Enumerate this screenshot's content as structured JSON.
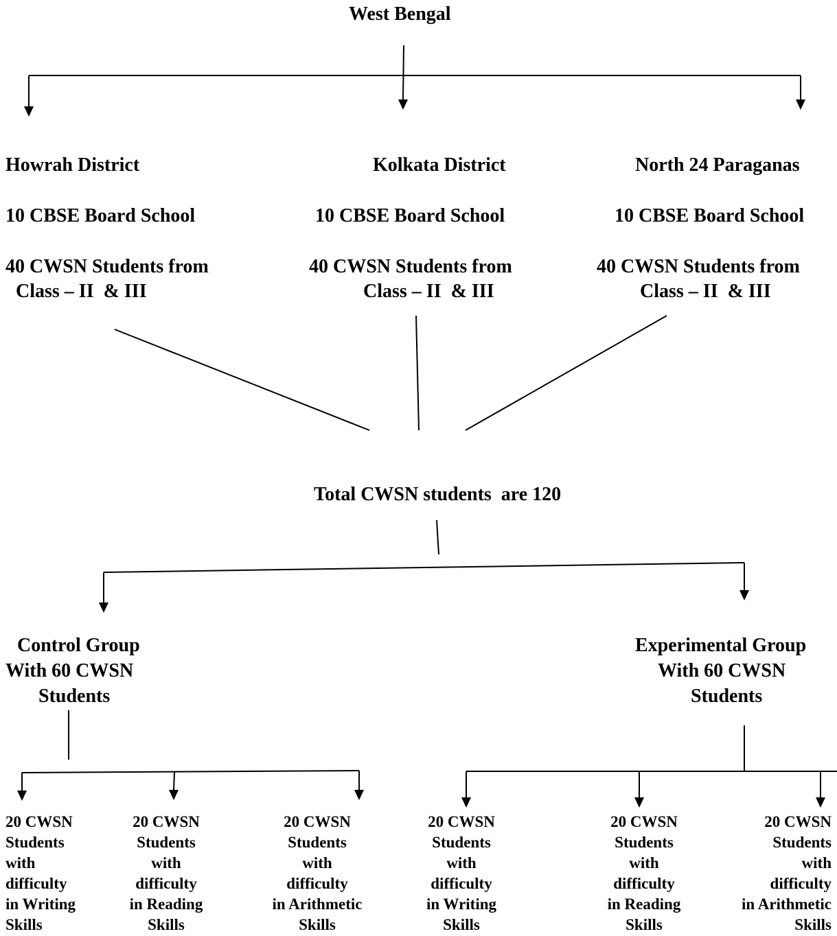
{
  "root": {
    "title": "West Bengal"
  },
  "districts": [
    {
      "name": "Howrah District",
      "schools": "10 CBSE Board School",
      "students_line1": "40 CWSN Students from",
      "students_line2": "Class – II  & III"
    },
    {
      "name": "Kolkata District",
      "schools": "10 CBSE Board School",
      "students_line1": "40 CWSN Students from",
      "students_line2": "Class – II  & III"
    },
    {
      "name": "North 24 Paraganas",
      "schools": "10 CBSE Board School",
      "students_line1": "40 CWSN Students from",
      "students_line2": "Class – II  & III"
    }
  ],
  "total": {
    "label": "Total CWSN students  are 120"
  },
  "groups": [
    {
      "line1": "Control Group",
      "line2": "With 60 CWSN",
      "line3": "Students"
    },
    {
      "line1": "Experimental Group",
      "line2": "With 60 CWSN",
      "line3": "Students"
    }
  ],
  "leaves": [
    {
      "l1": "20 CWSN",
      "l2": "Students",
      "l3": "with",
      "l4": "difficulty",
      "l5": "in Writing",
      "l6": "Skills"
    },
    {
      "l1": "20 CWSN",
      "l2": "Students",
      "l3": "with",
      "l4": "difficulty",
      "l5": "in Reading",
      "l6": "Skills"
    },
    {
      "l1": "20 CWSN",
      "l2": "Students",
      "l3": "with",
      "l4": "difficulty",
      "l5": "in Arithmetic",
      "l6": "Skills"
    },
    {
      "l1": "20 CWSN",
      "l2": "Students",
      "l3": "with",
      "l4": "difficulty",
      "l5": "in Writing",
      "l6": "Skills"
    },
    {
      "l1": "20 CWSN",
      "l2": "Students",
      "l3": "with",
      "l4": "difficulty",
      "l5": "in Reading",
      "l6": "Skills"
    },
    {
      "l1": "20 CWSN",
      "l2": "Students",
      "l3": "with",
      "l4": "difficulty",
      "l5": "in Arithmetic",
      "l6": "Skills"
    }
  ]
}
